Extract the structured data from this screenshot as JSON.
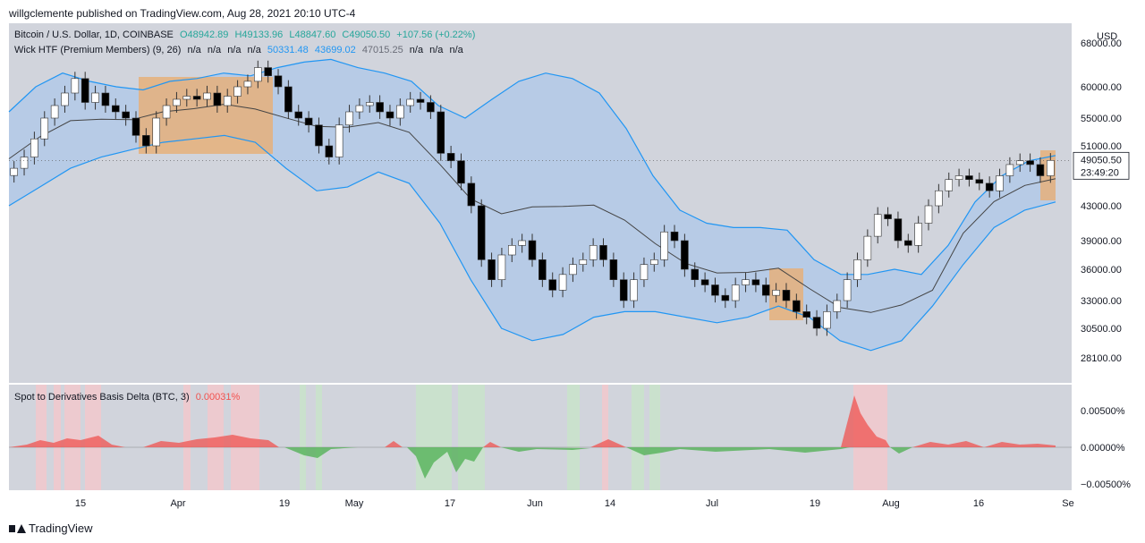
{
  "publisher_line": "willgclemente published on TradingView.com, Aug 28, 2021 20:10 UTC-4",
  "footer_brand": "TradingView",
  "colors": {
    "background": "#d1d4dc",
    "band_fill": "#b7cbe6",
    "band_line": "#2196f3",
    "basis_line": "#444444",
    "highlight_orange": "#e6b07a",
    "candle_up": "#ffffff",
    "candle_down": "#000000",
    "osc_positive": "#ef5350",
    "osc_negative": "#4caf50"
  },
  "main_legend": {
    "symbol": "Bitcoin / U.S. Dollar, 1D, COINBASE",
    "open": "O48942.89",
    "high": "H49133.96",
    "low": "L48847.60",
    "close": "C49050.50",
    "change": "+107.56 (+0.22%)"
  },
  "wick_legend": {
    "name": "Wick HTF (Premium Members) (9, 26)",
    "v1": "n/a",
    "v2": "n/a",
    "v3": "n/a",
    "v4": "n/a",
    "v5": "50331.48",
    "v6": "43699.02",
    "v7": "47015.25",
    "v8": "n/a",
    "v9": "n/a",
    "v10": "n/a"
  },
  "osc_legend": {
    "name": "Spot to Derivatives Basis Delta (BTC, 3)",
    "value": "0.00031%"
  },
  "currency": "USD",
  "price_badge": {
    "price": "49050.50",
    "countdown": "23:49:20"
  },
  "chart_data": [
    {
      "type": "candlestick",
      "title": "",
      "price_ticks": [
        "68000.00",
        "60000.00",
        "55000.00",
        "51000.00",
        "43000.00",
        "39000.00",
        "36000.00",
        "33000.00",
        "30500.00",
        "28100.00"
      ],
      "price_tick_values": [
        68000,
        60000,
        55000,
        51000,
        43000,
        39000,
        36000,
        33000,
        30500,
        28100
      ],
      "x_ticks": [
        "15",
        "Apr",
        "19",
        "May",
        "17",
        "Jun",
        "14",
        "Jul",
        "19",
        "Aug",
        "16",
        "Se"
      ],
      "close_approx": [
        48000,
        49500,
        52000,
        55000,
        57000,
        59000,
        61500,
        57500,
        59000,
        57000,
        56000,
        55000,
        52500,
        51000,
        55000,
        57000,
        58000,
        58500,
        58000,
        59000,
        57000,
        58500,
        60000,
        61000,
        63500,
        62000,
        60000,
        56000,
        55000,
        54000,
        51000,
        49500,
        54000,
        56000,
        57000,
        57500,
        56000,
        55000,
        57000,
        58000,
        57500,
        56000,
        50000,
        49000,
        46000,
        43000,
        37000,
        35000,
        37500,
        38500,
        39000,
        37000,
        35000,
        34000,
        35500,
        36500,
        37000,
        38500,
        37000,
        35000,
        33000,
        35000,
        36500,
        37000,
        40000,
        39000,
        36000,
        35000,
        34500,
        33500,
        33000,
        34500,
        35000,
        34500,
        33500,
        34000,
        33000,
        32000,
        31500,
        30500,
        32000,
        33000,
        35000,
        37000,
        39500,
        42000,
        41500,
        39000,
        38500,
        41000,
        43000,
        45000,
        46500,
        47000,
        46500,
        46000,
        45000,
        47000,
        48500,
        49000,
        48500,
        47000,
        49050
      ],
      "upper_band_approx": [
        56000,
        60000,
        62500,
        61000,
        60000,
        59500,
        61000,
        61500,
        62500,
        62000,
        63500,
        64500,
        65000,
        63500,
        62500,
        61000,
        57000,
        55000,
        58000,
        61000,
        62500,
        61500,
        59000,
        53500,
        47000,
        42500,
        41000,
        40500,
        40500,
        40200,
        37000,
        35500,
        35500,
        36000,
        35500,
        38500,
        43500,
        47000,
        49000,
        49700
      ],
      "lower_band_approx": [
        43000,
        45500,
        48000,
        49500,
        50500,
        51500,
        52000,
        52500,
        51500,
        48000,
        45000,
        45500,
        47500,
        46000,
        41000,
        35000,
        30500,
        29500,
        30000,
        31500,
        32000,
        32000,
        31500,
        31000,
        31500,
        32500,
        31500,
        29500,
        28700,
        29500,
        32500,
        36500,
        40500,
        42500,
        43500
      ],
      "osc_ticks": [
        "0.00500%",
        "0.00000%",
        "−0.00500%"
      ],
      "osc_tick_values": [
        0.005,
        0.0,
        -0.005
      ]
    }
  ]
}
